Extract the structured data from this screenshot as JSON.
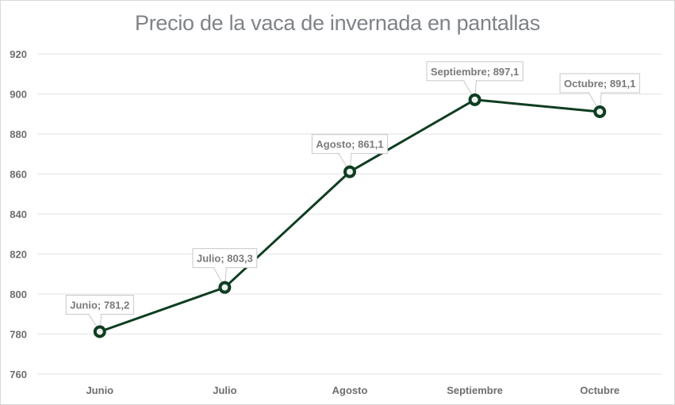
{
  "chart_data": {
    "type": "line",
    "title": "Precio de la vaca de invernada en pantallas",
    "categories": [
      "Junio",
      "Julio",
      "Agosto",
      "Septiembre",
      "Octubre"
    ],
    "values": [
      781.2,
      803.3,
      861.1,
      897.1,
      891.1
    ],
    "data_labels": [
      "Junio; 781,2",
      "Julio; 803,3",
      "Agosto; 861,1",
      "Septiembre; 897,1",
      "Octubre; 891,1"
    ],
    "y_ticks": [
      "760",
      "780",
      "800",
      "820",
      "840",
      "860",
      "880",
      "900",
      "920"
    ],
    "ylim": [
      760,
      920
    ],
    "xlabel": "",
    "ylabel": "",
    "grid": "horizontal",
    "legend": "none",
    "line_color": "#0f3d22",
    "marker": "hollow-circle",
    "grid_color": "#e3e3e3"
  }
}
